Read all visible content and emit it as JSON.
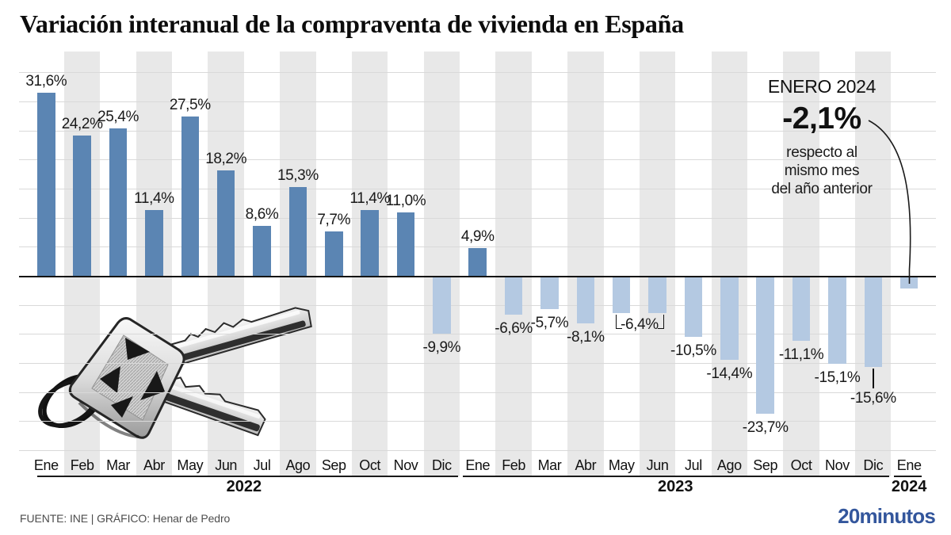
{
  "title": "Variación interanual de la compraventa de vivienda en España",
  "annotation": {
    "heading": "ENERO 2024",
    "value": "-2,1%",
    "note": [
      "respecto al",
      "mismo mes",
      "del año anterior"
    ]
  },
  "footer": {
    "source": "FUENTE: INE  |  GRÁFICO: Henar de Pedro",
    "logo": "20minutos"
  },
  "colors": {
    "positive": "#5b85b3",
    "negative": "#b4c9e2",
    "stripe": "#e8e8e8",
    "grid": "#d9d9d9",
    "axis": "#141414",
    "text": "#1a1a1a",
    "muted": "#4d4d4d",
    "logo_blue": "#33569c"
  },
  "chart_data": {
    "type": "bar",
    "title": "Variación interanual de la compraventa de vivienda en España",
    "unit": "%",
    "ylim": [
      -30,
      35
    ],
    "grid_step": 5,
    "grid_values": [
      35,
      30,
      25,
      20,
      15,
      10,
      5,
      -5,
      -10,
      -15,
      -20,
      -25,
      -30
    ],
    "legend": "none",
    "year_groups": [
      {
        "label": "2022",
        "from": 0,
        "to": 11
      },
      {
        "label": "2023",
        "from": 12,
        "to": 23
      },
      {
        "label": "2024",
        "from": 24,
        "to": 24
      }
    ],
    "points": [
      {
        "month": "Ene",
        "year": 2022,
        "value": 31.6,
        "label": "31,6%",
        "lp": "above"
      },
      {
        "month": "Feb",
        "year": 2022,
        "value": 24.2,
        "label": "24,2%",
        "lp": "above"
      },
      {
        "month": "Mar",
        "year": 2022,
        "value": 25.4,
        "label": "25,4%",
        "lp": "above"
      },
      {
        "month": "Abr",
        "year": 2022,
        "value": 11.4,
        "label": "11,4%",
        "lp": "above"
      },
      {
        "month": "May",
        "year": 2022,
        "value": 27.5,
        "label": "27,5%",
        "lp": "above"
      },
      {
        "month": "Jun",
        "year": 2022,
        "value": 18.2,
        "label": "18,2%",
        "lp": "above"
      },
      {
        "month": "Jul",
        "year": 2022,
        "value": 8.6,
        "label": "8,6%",
        "lp": "above"
      },
      {
        "month": "Ago",
        "year": 2022,
        "value": 15.3,
        "label": "15,3%",
        "lp": "above"
      },
      {
        "month": "Sep",
        "year": 2022,
        "value": 7.7,
        "label": "7,7%",
        "lp": "above"
      },
      {
        "month": "Oct",
        "year": 2022,
        "value": 11.4,
        "label": "11,4%",
        "lp": "above"
      },
      {
        "month": "Nov",
        "year": 2022,
        "value": 11.0,
        "label": "11,0%",
        "lp": "above"
      },
      {
        "month": "Dic",
        "year": 2022,
        "value": -9.9,
        "label": "-9,9%",
        "lp": "below"
      },
      {
        "month": "Ene",
        "year": 2023,
        "value": 4.9,
        "label": "4,9%",
        "lp": "above"
      },
      {
        "month": "Feb",
        "year": 2023,
        "value": -6.6,
        "label": "-6,6%",
        "lp": "below"
      },
      {
        "month": "Mar",
        "year": 2023,
        "value": -5.7,
        "label": "-5,7%",
        "lp": "below"
      },
      {
        "month": "Abr",
        "year": 2023,
        "value": -8.1,
        "label": "-8,1%",
        "lp": "below"
      },
      {
        "month": "May",
        "year": 2023,
        "value": -6.4,
        "label": "-6,4%",
        "lp": "shared"
      },
      {
        "month": "Jun",
        "year": 2023,
        "value": -6.4,
        "label": "-6,4%",
        "lp": "partner"
      },
      {
        "month": "Jul",
        "year": 2023,
        "value": -10.5,
        "label": "-10,5%",
        "lp": "below"
      },
      {
        "month": "Ago",
        "year": 2023,
        "value": -14.4,
        "label": "-14,4%",
        "lp": "below"
      },
      {
        "month": "Sep",
        "year": 2023,
        "value": -23.7,
        "label": "-23,7%",
        "lp": "below"
      },
      {
        "month": "Oct",
        "year": 2023,
        "value": -11.1,
        "label": "-11,1%",
        "lp": "below"
      },
      {
        "month": "Nov",
        "year": 2023,
        "value": -15.1,
        "label": "-15,1%",
        "lp": "below"
      },
      {
        "month": "Dic",
        "year": 2023,
        "value": -15.6,
        "label": "-15,6%",
        "lp": "leader"
      },
      {
        "month": "Ene",
        "year": 2024,
        "value": -2.1,
        "label": "-2,1%",
        "lp": "target"
      }
    ]
  }
}
